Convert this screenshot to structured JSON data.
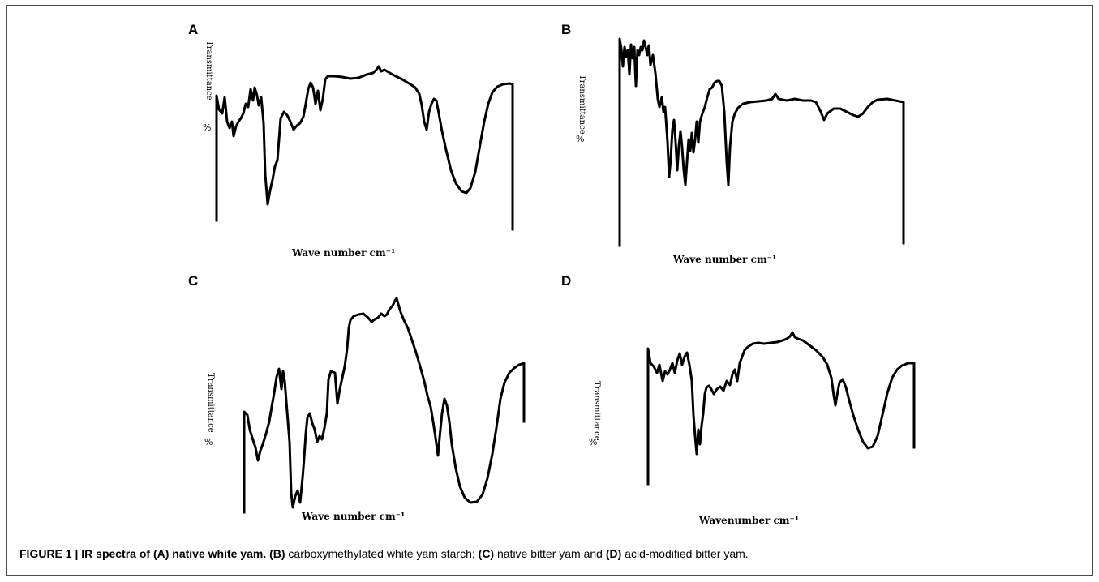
{
  "figure": {
    "panels": [
      {
        "letter": "A",
        "ylabel": "Transmittance",
        "ylabel_pct": "%",
        "xlabel": "Wave number  cm⁻¹"
      },
      {
        "letter": "B",
        "ylabel": "Transmittance",
        "ylabel_pct": "%",
        "xlabel": "Wave number  cm⁻¹"
      },
      {
        "letter": "C",
        "ylabel": "Transmittance",
        "ylabel_pct": "%",
        "xlabel": "Wave number  cm⁻¹"
      },
      {
        "letter": "D",
        "ylabel": "Transmittance",
        "ylabel_pct": "%",
        "xlabel": "Wavenumber  cm⁻¹"
      }
    ],
    "caption": {
      "prefix": "FIGURE 1 | IR spectra of ",
      "a_tag": "(A)",
      "a_text": " native white yam.",
      "b_tag": " (B)",
      "b_text": " carboxymethylated white yam starch; ",
      "c_tag": "(C)",
      "c_text": " native bitter yam and ",
      "d_tag": "(D)",
      "d_text": " acid-modified bitter yam."
    }
  }
}
